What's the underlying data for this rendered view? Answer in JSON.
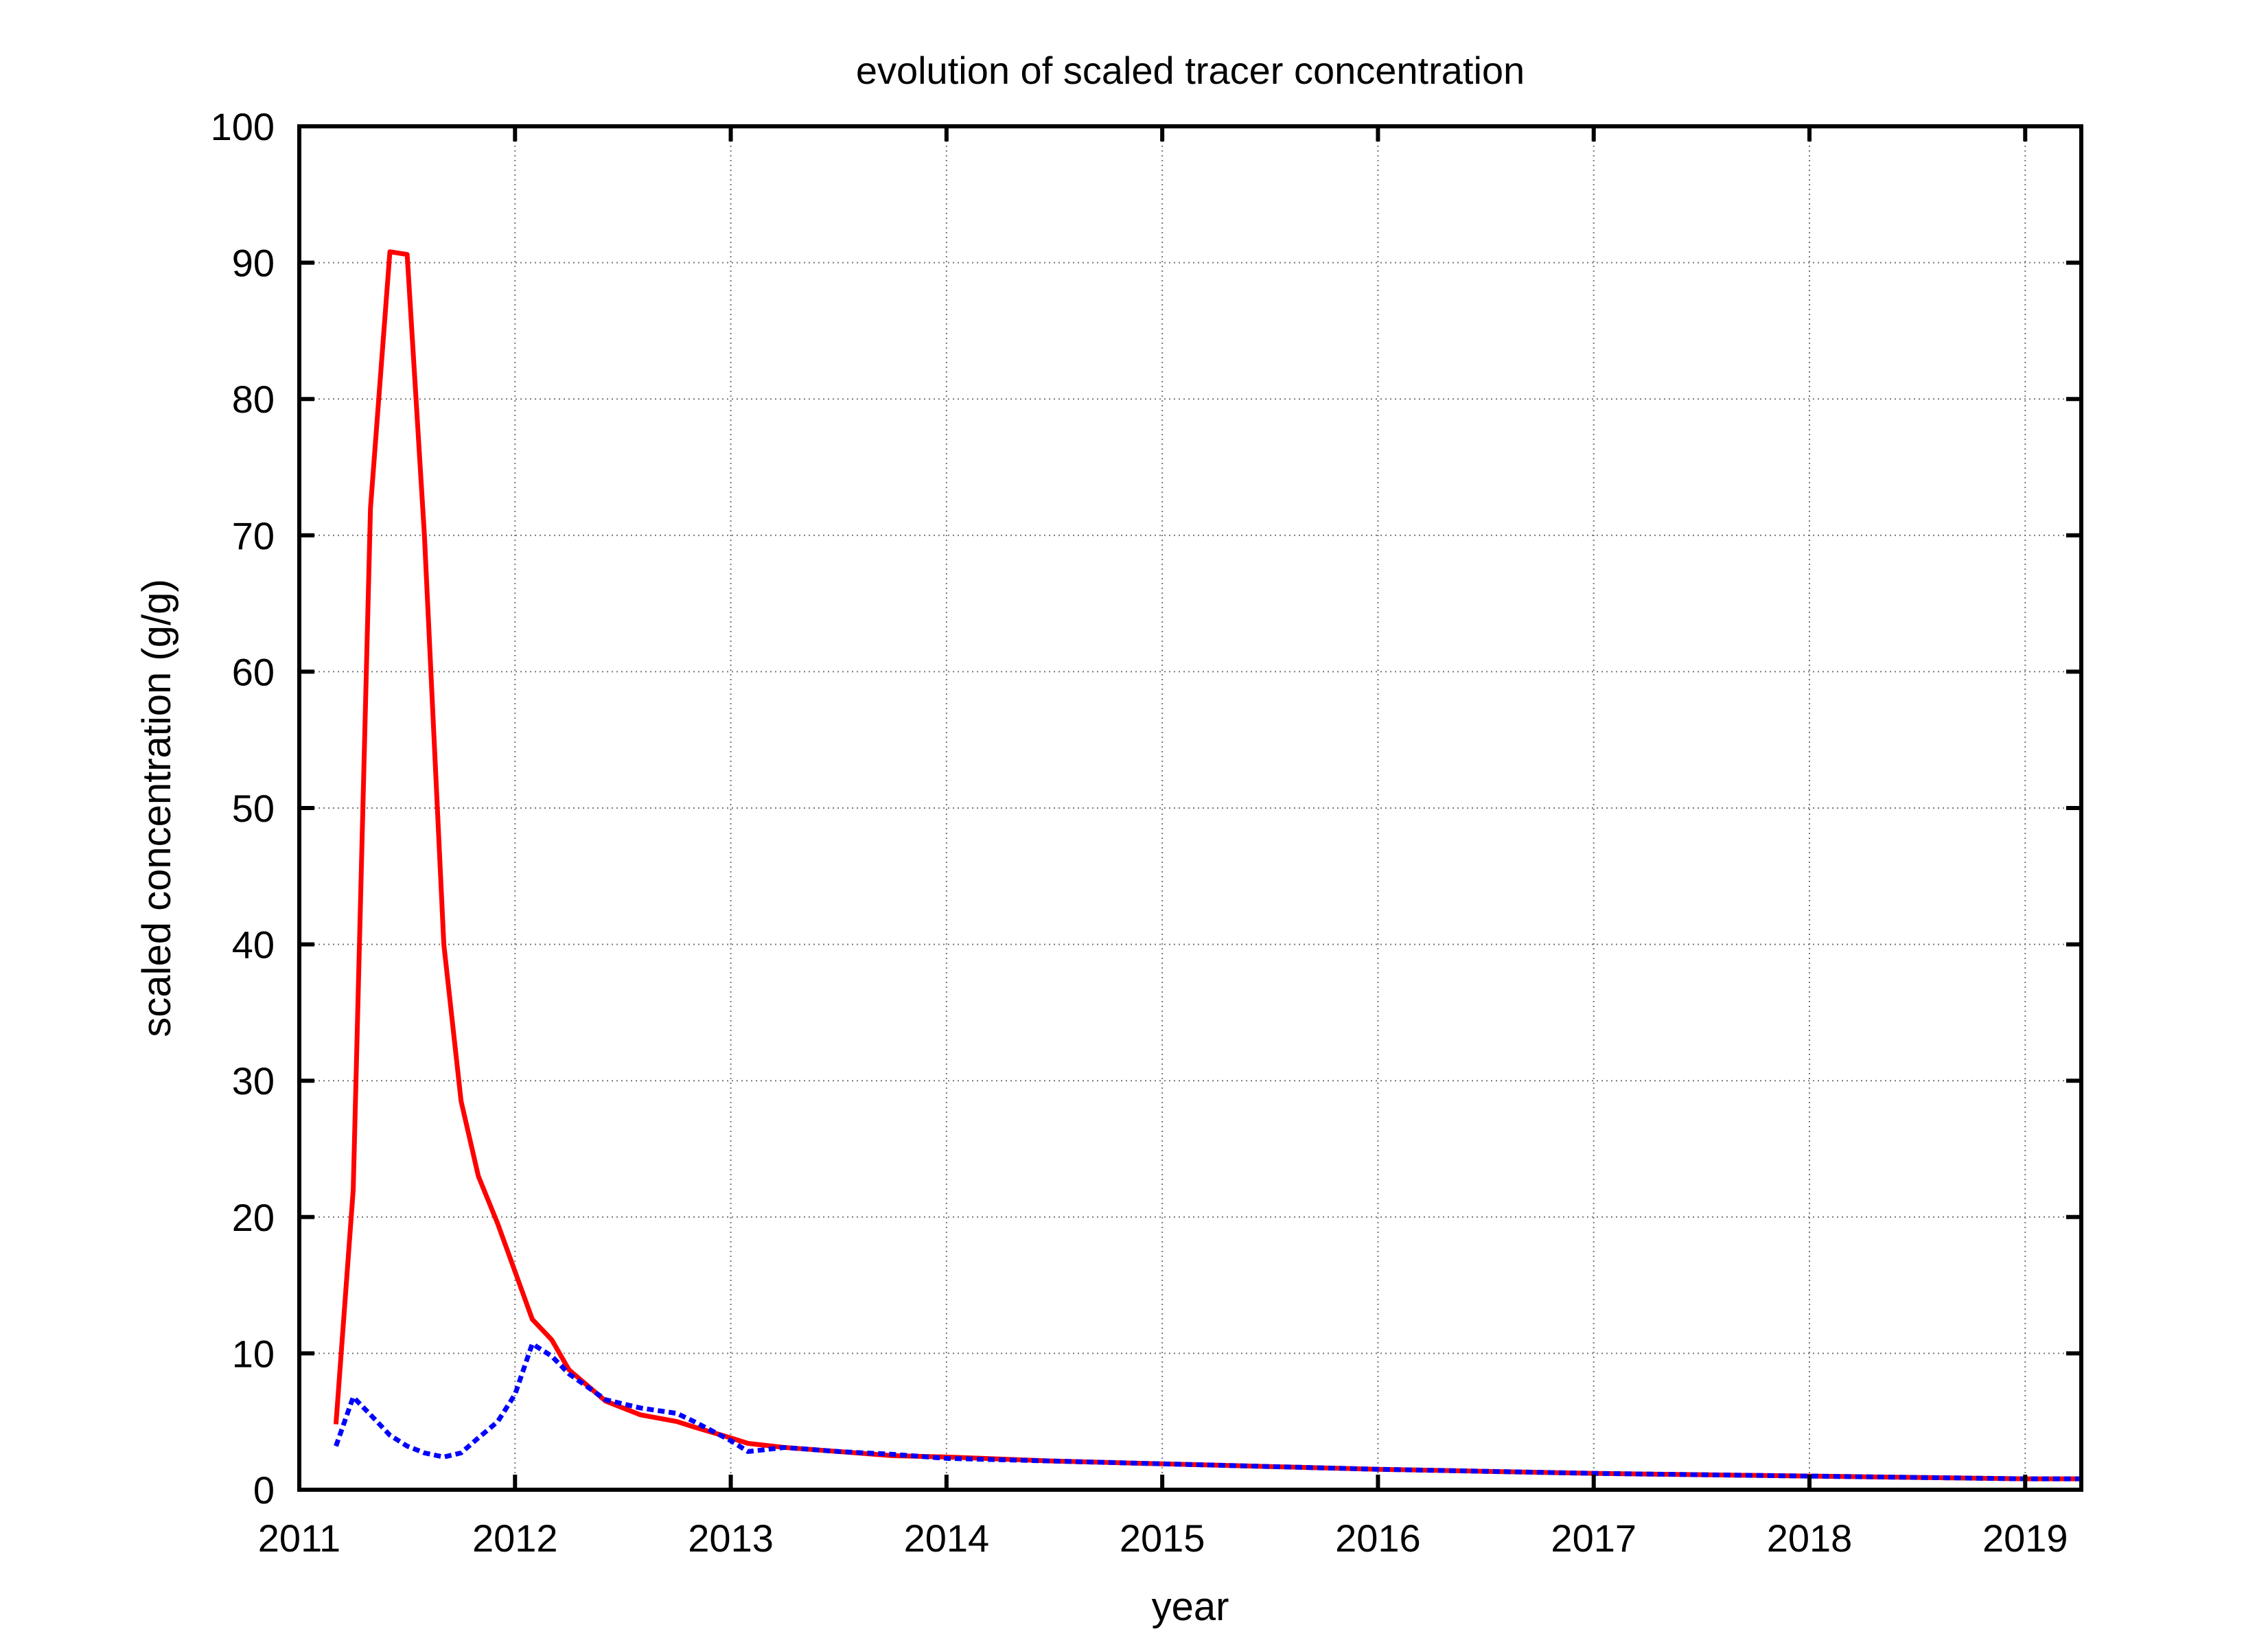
{
  "chart_data": {
    "type": "line",
    "title": "evolution of  scaled tracer concentration",
    "x_label": "year",
    "y_label": "scaled concentration (g/g)",
    "x": [
      2011.17,
      2011.25,
      2011.33,
      2011.42,
      2011.5,
      2011.58,
      2011.67,
      2011.75,
      2011.83,
      2011.92,
      2012.0,
      2012.08,
      2012.17,
      2012.25,
      2012.42,
      2012.58,
      2012.75,
      2012.83,
      2013.0,
      2013.08,
      2013.25,
      2013.5,
      2013.75,
      2014.0,
      2014.5,
      2015.0,
      2015.5,
      2016.0,
      2016.5,
      2017.0,
      2017.5,
      2018.0,
      2018.5,
      2019.0,
      2019.25
    ],
    "series": [
      {
        "color": "#ff0000",
        "dash": "solid",
        "values": [
          4.8,
          22,
          72,
          90.8,
          90.6,
          70,
          40,
          28.5,
          23,
          19.5,
          16,
          12.5,
          11,
          8.8,
          6.5,
          5.5,
          5,
          4.6,
          3.8,
          3.4,
          3.1,
          2.8,
          2.5,
          2.4,
          2.1,
          1.9,
          1.7,
          1.5,
          1.35,
          1.2,
          1.1,
          1.0,
          0.9,
          0.8,
          0.8
        ]
      },
      {
        "color": "#0000ff",
        "dash": "dotted",
        "values": [
          3.2,
          6.8,
          5.5,
          4,
          3.2,
          2.7,
          2.4,
          2.7,
          3.8,
          5,
          7,
          10.7,
          9.8,
          8.5,
          6.6,
          6,
          5.6,
          5,
          3.6,
          2.8,
          3.1,
          2.8,
          2.6,
          2.3,
          2.1,
          1.9,
          1.7,
          1.5,
          1.35,
          1.2,
          1.1,
          1.0,
          0.9,
          0.8,
          0.8
        ]
      }
    ],
    "xlim": [
      2011,
      2019.26
    ],
    "xticks": [
      2011,
      2012,
      2013,
      2014,
      2015,
      2016,
      2017,
      2018,
      2019
    ],
    "ylim": [
      0,
      100
    ],
    "yticks": [
      0,
      10,
      20,
      30,
      40,
      50,
      60,
      70,
      80,
      90,
      100
    ],
    "grid": true
  }
}
